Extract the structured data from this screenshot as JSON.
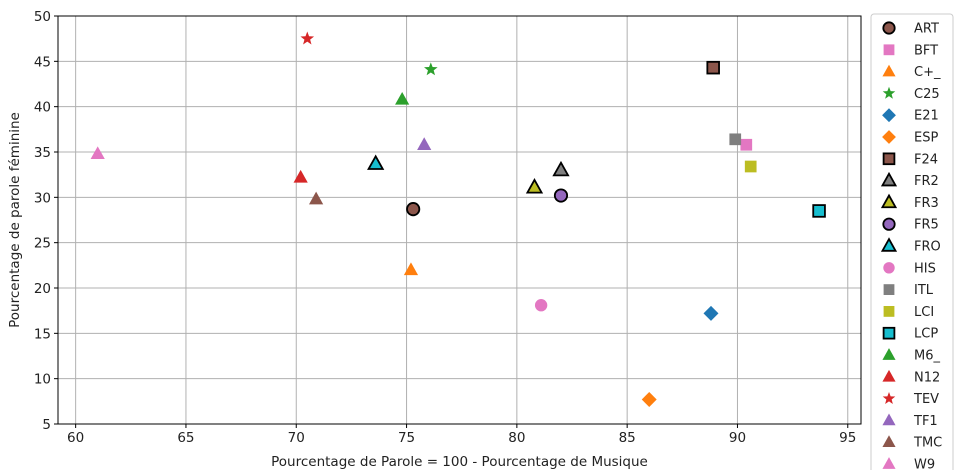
{
  "chart_data": {
    "type": "scatter",
    "title": "",
    "xlabel": "Pourcentage de Parole = 100 - Pourcentage de Musique",
    "ylabel": "Pourcentage de parole féminine",
    "xlim": [
      59.2,
      95.6
    ],
    "ylim": [
      5,
      50
    ],
    "xticks": [
      60,
      65,
      70,
      75,
      80,
      85,
      90,
      95
    ],
    "yticks": [
      5,
      10,
      15,
      20,
      25,
      30,
      35,
      40,
      45,
      50
    ],
    "grid": true,
    "legend_position": "right-outside",
    "series": [
      {
        "name": "ART",
        "marker": "circle",
        "color": "#8c564b",
        "edge": "black",
        "x": 75.3,
        "y": 28.7
      },
      {
        "name": "BFT",
        "marker": "square",
        "color": "#e377c2",
        "edge": "none",
        "x": 90.4,
        "y": 35.8
      },
      {
        "name": "C+_",
        "marker": "triangle",
        "color": "#ff7f0e",
        "edge": "none",
        "x": 75.2,
        "y": 22.0
      },
      {
        "name": "C25",
        "marker": "star",
        "color": "#2ca02c",
        "edge": "none",
        "x": 76.1,
        "y": 44.1
      },
      {
        "name": "E21",
        "marker": "diamond",
        "color": "#1f77b4",
        "edge": "none",
        "x": 88.8,
        "y": 17.2
      },
      {
        "name": "ESP",
        "marker": "diamond",
        "color": "#ff7f0e",
        "edge": "none",
        "x": 86.0,
        "y": 7.7
      },
      {
        "name": "F24",
        "marker": "square",
        "color": "#8c564b",
        "edge": "black",
        "x": 88.9,
        "y": 44.3
      },
      {
        "name": "FR2",
        "marker": "triangle",
        "color": "#7f7f7f",
        "edge": "black",
        "x": 82.0,
        "y": 33.0
      },
      {
        "name": "FR3",
        "marker": "triangle",
        "color": "#bcbd22",
        "edge": "black",
        "x": 80.8,
        "y": 31.1
      },
      {
        "name": "FR5",
        "marker": "circle",
        "color": "#9467bd",
        "edge": "black",
        "x": 82.0,
        "y": 30.2
      },
      {
        "name": "FRO",
        "marker": "triangle",
        "color": "#17becf",
        "edge": "black",
        "x": 73.6,
        "y": 33.7
      },
      {
        "name": "HIS",
        "marker": "circle",
        "color": "#e377c2",
        "edge": "none",
        "x": 81.1,
        "y": 18.1
      },
      {
        "name": "ITL",
        "marker": "square",
        "color": "#7f7f7f",
        "edge": "none",
        "x": 89.9,
        "y": 36.4
      },
      {
        "name": "LCI",
        "marker": "square",
        "color": "#bcbd22",
        "edge": "none",
        "x": 90.6,
        "y": 33.4
      },
      {
        "name": "LCP",
        "marker": "square",
        "color": "#17becf",
        "edge": "black",
        "x": 93.7,
        "y": 28.5
      },
      {
        "name": "M6_",
        "marker": "triangle",
        "color": "#2ca02c",
        "edge": "none",
        "x": 74.8,
        "y": 40.8
      },
      {
        "name": "N12",
        "marker": "triangle",
        "color": "#d62728",
        "edge": "none",
        "x": 70.2,
        "y": 32.2
      },
      {
        "name": "TEV",
        "marker": "star",
        "color": "#d62728",
        "edge": "none",
        "x": 70.5,
        "y": 47.5
      },
      {
        "name": "TF1",
        "marker": "triangle",
        "color": "#9467bd",
        "edge": "none",
        "x": 75.8,
        "y": 35.8
      },
      {
        "name": "TMC",
        "marker": "triangle",
        "color": "#8c564b",
        "edge": "none",
        "x": 70.9,
        "y": 29.8
      },
      {
        "name": "W9_",
        "marker": "triangle",
        "color": "#e377c2",
        "edge": "none",
        "x": 61.0,
        "y": 34.8
      }
    ]
  }
}
